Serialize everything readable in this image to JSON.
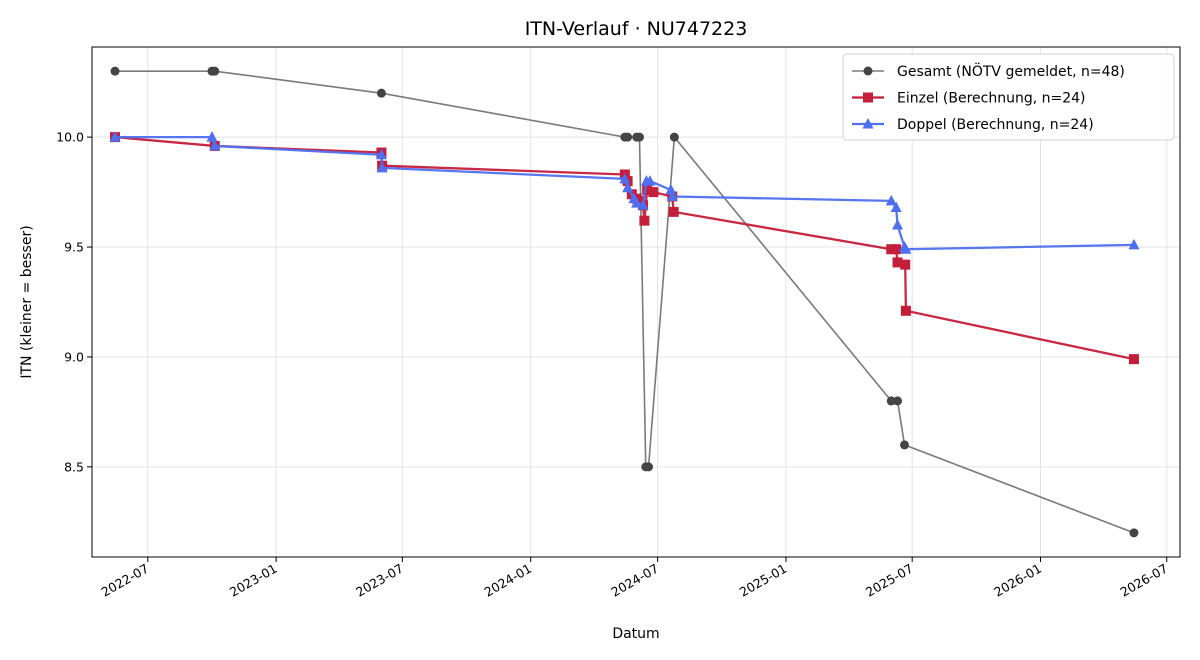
{
  "chart_data": {
    "type": "line",
    "title": "ITN-Verlauf · NU747223",
    "xlabel": "Datum",
    "ylabel": "ITN  (kleiner = besser)",
    "xlim": [
      "2022-04-12",
      "2026-07-20"
    ],
    "ylim": [
      8.09,
      10.41
    ],
    "x_ticks": [
      "2022-07",
      "2023-01",
      "2023-07",
      "2024-01",
      "2024-07",
      "2025-01",
      "2025-07",
      "2026-01",
      "2026-07"
    ],
    "y_ticks": [
      8.5,
      9.0,
      9.5,
      10.0
    ],
    "grid": true,
    "legend": "top-right",
    "series": [
      {
        "name": "Gesamt (NÖTV gemeldet, n=48)",
        "color": "#444444",
        "line_color": "#7a7a7a",
        "marker": "circle",
        "points": [
          [
            "2022-05-15",
            10.3
          ],
          [
            "2022-10-01",
            10.3
          ],
          [
            "2022-10-05",
            10.3
          ],
          [
            "2023-06-01",
            10.2
          ],
          [
            "2024-05-15",
            10.0
          ],
          [
            "2024-05-19",
            10.0
          ],
          [
            "2024-06-01",
            10.0
          ],
          [
            "2024-06-05",
            10.0
          ],
          [
            "2024-06-14",
            8.5
          ],
          [
            "2024-06-18",
            8.5
          ],
          [
            "2024-07-25",
            10.0
          ],
          [
            "2025-06-01",
            8.8
          ],
          [
            "2025-06-10",
            8.8
          ],
          [
            "2025-06-20",
            8.6
          ],
          [
            "2026-05-15",
            8.2
          ]
        ]
      },
      {
        "name": "Einzel (Berechnung, n=24)",
        "color": "#c41e3a",
        "marker": "square",
        "points": [
          [
            "2022-05-15",
            10.0
          ],
          [
            "2022-10-05",
            9.96
          ],
          [
            "2023-06-01",
            9.93
          ],
          [
            "2023-06-02",
            9.87
          ],
          [
            "2024-05-15",
            9.83
          ],
          [
            "2024-05-19",
            9.8
          ],
          [
            "2024-05-25",
            9.74
          ],
          [
            "2024-06-01",
            9.72
          ],
          [
            "2024-06-05",
            9.71
          ],
          [
            "2024-06-10",
            9.69
          ],
          [
            "2024-06-12",
            9.62
          ],
          [
            "2024-06-16",
            9.76
          ],
          [
            "2024-06-25",
            9.75
          ],
          [
            "2024-07-22",
            9.73
          ],
          [
            "2024-07-24",
            9.66
          ],
          [
            "2025-06-01",
            9.49
          ],
          [
            "2025-06-08",
            9.49
          ],
          [
            "2025-06-10",
            9.43
          ],
          [
            "2025-06-21",
            9.42
          ],
          [
            "2025-06-22",
            9.21
          ],
          [
            "2026-05-15",
            8.99
          ]
        ]
      },
      {
        "name": "Doppel (Berechnung, n=24)",
        "color": "#4e6ff0",
        "marker": "triangle",
        "points": [
          [
            "2022-05-15",
            10.0
          ],
          [
            "2022-10-01",
            10.0
          ],
          [
            "2022-10-05",
            9.96
          ],
          [
            "2023-06-01",
            9.92
          ],
          [
            "2023-06-02",
            9.86
          ],
          [
            "2024-05-15",
            9.81
          ],
          [
            "2024-05-19",
            9.77
          ],
          [
            "2024-05-28",
            9.72
          ],
          [
            "2024-06-01",
            9.7
          ],
          [
            "2024-06-10",
            9.69
          ],
          [
            "2024-06-15",
            9.8
          ],
          [
            "2024-06-20",
            9.8
          ],
          [
            "2024-07-20",
            9.76
          ],
          [
            "2024-07-22",
            9.73
          ],
          [
            "2025-06-01",
            9.71
          ],
          [
            "2025-06-08",
            9.68
          ],
          [
            "2025-06-10",
            9.6
          ],
          [
            "2025-06-20",
            9.5
          ],
          [
            "2025-06-22",
            9.49
          ],
          [
            "2026-05-15",
            9.51
          ]
        ]
      }
    ]
  }
}
